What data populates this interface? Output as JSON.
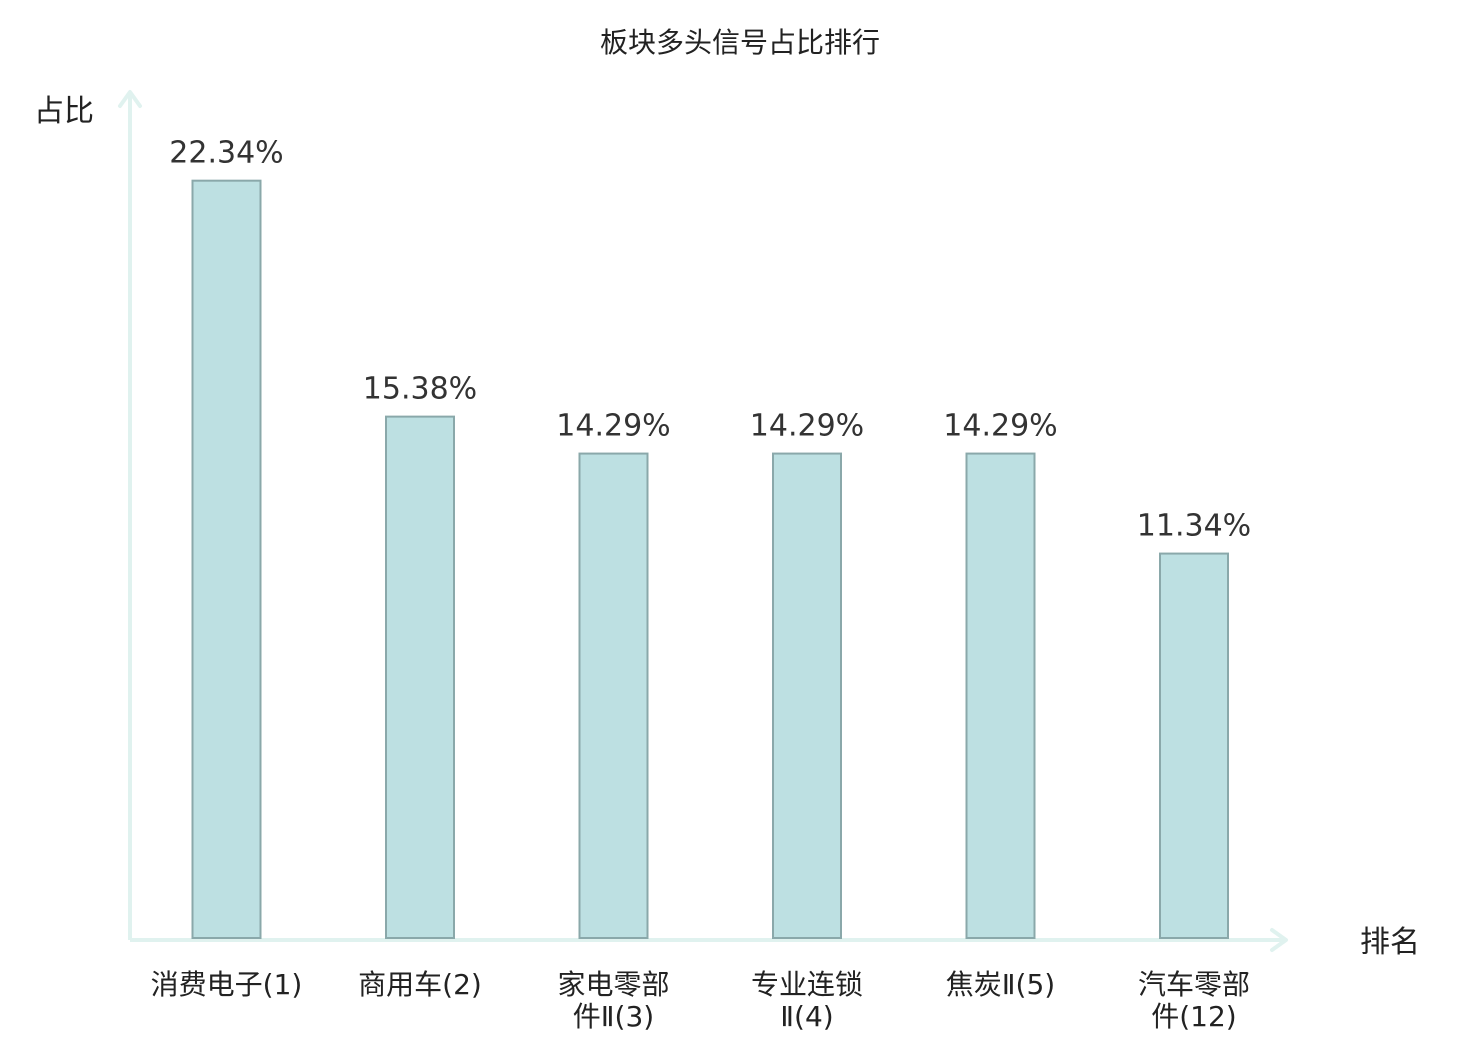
{
  "chart_data": {
    "type": "bar",
    "title": "板块多头信号占比排行",
    "ylabel": "占比",
    "xlabel": "排名",
    "ylim": [
      0,
      25
    ],
    "grid": false,
    "categories": [
      {
        "lines": [
          "消费电子(1)"
        ],
        "highlight": false
      },
      {
        "lines": [
          "商用车(2)"
        ],
        "highlight": false
      },
      {
        "lines": [
          "家电零部",
          "件Ⅱ(3)"
        ],
        "highlight": false
      },
      {
        "lines": [
          "专业连锁",
          "Ⅱ(4)"
        ],
        "highlight": false
      },
      {
        "lines": [
          "焦炭Ⅱ(5)"
        ],
        "highlight": false
      },
      {
        "lines": [
          "汽车零部",
          "件(12)"
        ],
        "highlight": true
      }
    ],
    "values": [
      22.34,
      15.38,
      14.29,
      14.29,
      14.29,
      11.34
    ],
    "value_labels": [
      "22.34%",
      "15.38%",
      "14.29%",
      "14.29%",
      "14.29%",
      "11.34%"
    ],
    "colors": {
      "bar_fill": "#bde0e2",
      "bar_stroke": "#8aa8aa",
      "axis": "#e0f2ef",
      "highlight_text": "#e02020",
      "text": "#222222"
    }
  }
}
